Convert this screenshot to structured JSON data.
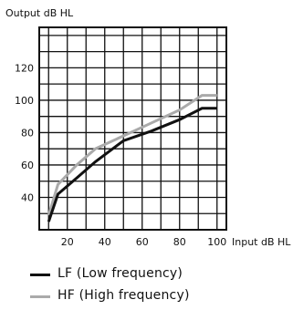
{
  "chart_data": {
    "type": "line",
    "ylabel": "Output dB HL",
    "xlabel": "Input dB HL",
    "xlim": [
      5,
      105
    ],
    "ylim": [
      20,
      145
    ],
    "x_ticks": [
      20,
      40,
      60,
      80,
      100
    ],
    "y_ticks": [
      40,
      60,
      80,
      100,
      120
    ],
    "grid": true,
    "legend_position": "bottom",
    "series": [
      {
        "name": "LF (Low frequency)",
        "color": "#111111",
        "x": [
          10,
          15,
          25,
          35,
          50,
          65,
          80,
          92,
          100
        ],
        "y": [
          25,
          42,
          52,
          62,
          75,
          81,
          88,
          95,
          95
        ]
      },
      {
        "name": "HF (High frequency)",
        "color": "#aaaaaa",
        "x": [
          10,
          15,
          25,
          35,
          50,
          65,
          80,
          92,
          100
        ],
        "y": [
          29,
          48,
          60,
          70,
          78,
          86,
          94,
          103,
          103
        ]
      }
    ]
  }
}
